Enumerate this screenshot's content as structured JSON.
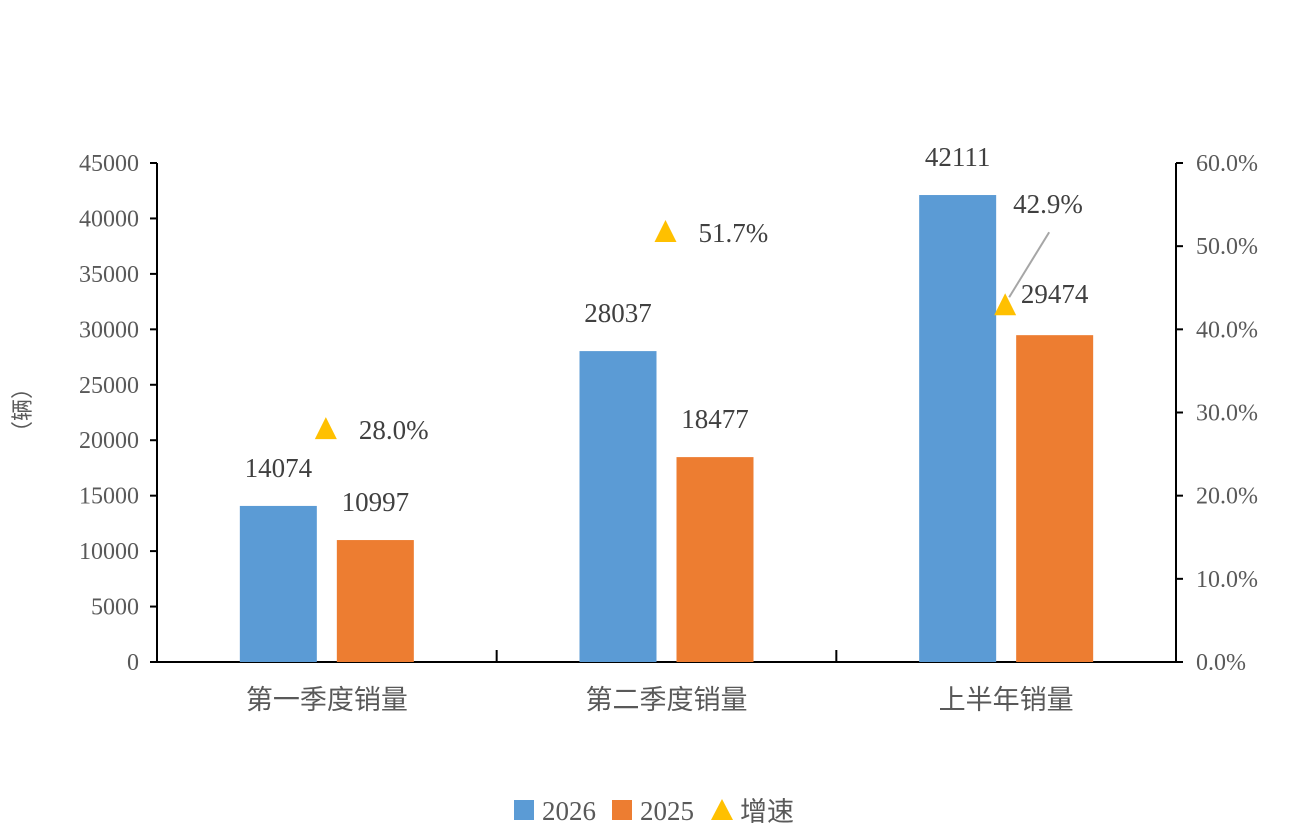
{
  "chart_data": {
    "type": "bar",
    "title": "",
    "ylabel": "（辆）",
    "xlabel": "",
    "categories": [
      "第一季度销量",
      "第二季度销量",
      "上半年销量"
    ],
    "series": [
      {
        "name": "2026",
        "type": "bar",
        "axis": "left",
        "values": [
          14074,
          28037,
          42111
        ],
        "labels": [
          "14074",
          "28037",
          "42111"
        ],
        "color": "#5B9BD5"
      },
      {
        "name": "2025",
        "type": "bar",
        "axis": "left",
        "values": [
          10997,
          18477,
          29474
        ],
        "labels": [
          "10997",
          "18477",
          "29474"
        ],
        "color": "#ED7D31"
      },
      {
        "name": "增速",
        "type": "scatter",
        "marker": "triangle",
        "axis": "right",
        "values": [
          28.0,
          51.7,
          42.9
        ],
        "labels": [
          "28.0%",
          "51.7%",
          "42.9%"
        ],
        "color": "#FFC000"
      }
    ],
    "ylim": [
      0,
      45000
    ],
    "yticks": [
      "0",
      "5000",
      "10000",
      "15000",
      "20000",
      "25000",
      "30000",
      "35000",
      "40000",
      "45000"
    ],
    "y2lim": [
      0,
      60
    ],
    "y2ticks": [
      "0.0%",
      "10.0%",
      "20.0%",
      "30.0%",
      "40.0%",
      "50.0%",
      "60.0%"
    ],
    "grid": false,
    "legend_position": "bottom"
  }
}
